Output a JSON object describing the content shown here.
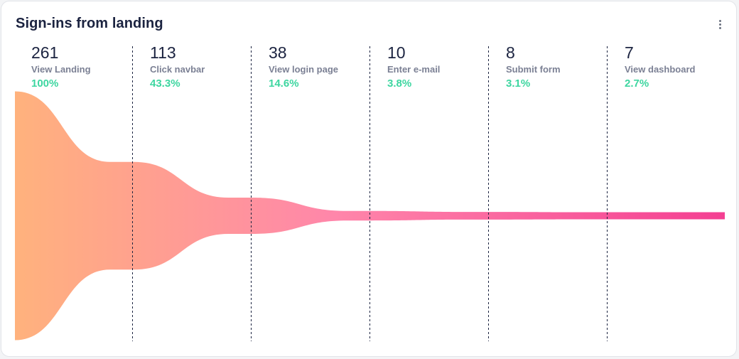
{
  "card": {
    "title": "Sign-ins from landing",
    "menu_icon": "more-vertical-icon"
  },
  "colors": {
    "gradient_start": "#ffb27d",
    "gradient_mid": "#ff86aa",
    "gradient_end": "#f43f92",
    "percent": "#3dd6a0",
    "divider": "#1b2340"
  },
  "chart_data": {
    "type": "funnel",
    "title": "Sign-ins from landing",
    "stages": [
      {
        "label": "View Landing",
        "count": "261",
        "percent": "100%",
        "value": 261
      },
      {
        "label": "Click navbar",
        "count": "113",
        "percent": "43.3%",
        "value": 113
      },
      {
        "label": "View login page",
        "count": "38",
        "percent": "14.6%",
        "value": 38
      },
      {
        "label": "Enter e-mail",
        "count": "10",
        "percent": "3.8%",
        "value": 10
      },
      {
        "label": "Submit form",
        "count": "8",
        "percent": "3.1%",
        "value": 8
      },
      {
        "label": "View dashboard",
        "count": "7",
        "percent": "2.7%",
        "value": 7
      }
    ]
  }
}
